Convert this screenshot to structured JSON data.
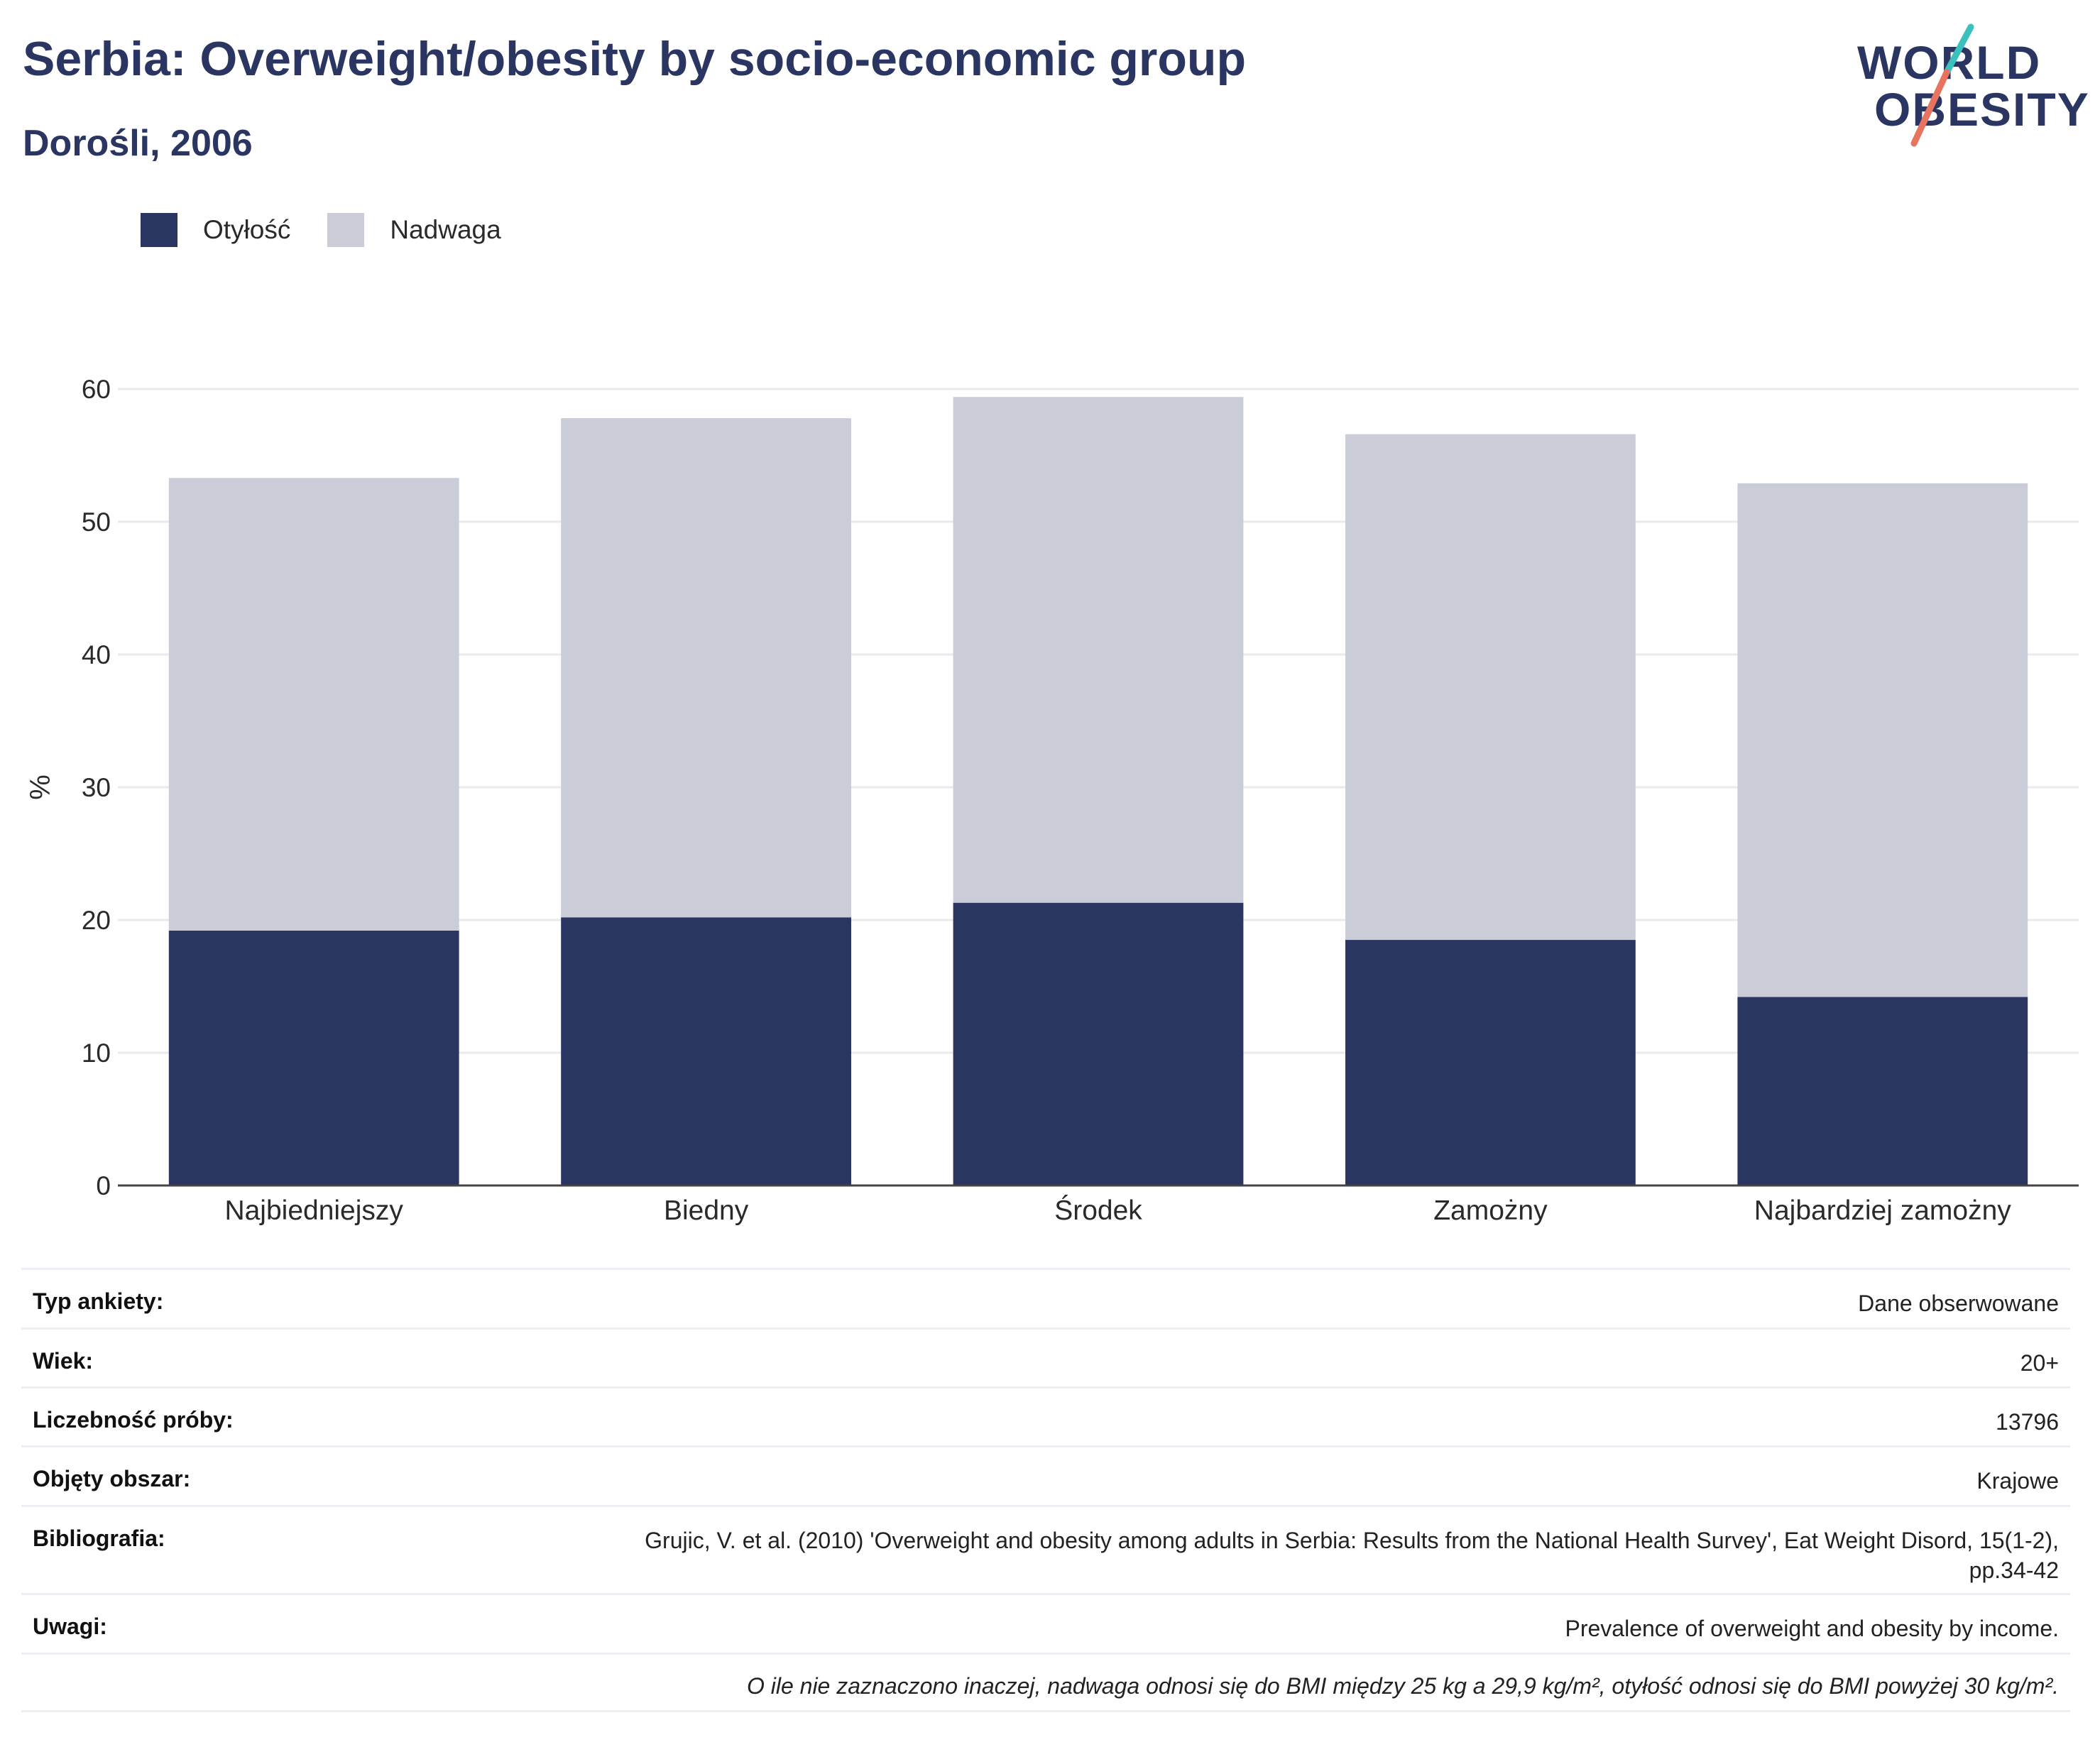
{
  "header": {
    "title": "Serbia: Overweight/obesity by socio-economic group",
    "subtitle": "Dorośli, 2006"
  },
  "logo": {
    "line1": "WORLD",
    "line2": "OBESITY"
  },
  "colors": {
    "obesity": "#2a3561",
    "overweight": "#caccd8",
    "title": "#2a3561",
    "logo_teal": "#3bbfbf",
    "logo_coral": "#e8735f"
  },
  "chart_data": {
    "type": "bar",
    "stacked": true,
    "categories": [
      "Najbiedniejszy",
      "Biedny",
      "Środek",
      "Zamożny",
      "Najbardziej zamożny"
    ],
    "series": [
      {
        "name": "Otyłość",
        "values": [
          19.2,
          20.2,
          21.3,
          18.5,
          14.2
        ]
      },
      {
        "name": "Nadwaga",
        "values": [
          34.1,
          37.6,
          38.1,
          38.1,
          38.7
        ]
      }
    ],
    "ylabel": "%",
    "ylim": [
      0,
      60
    ],
    "yticks": [
      0,
      10,
      20,
      30,
      40,
      50,
      60
    ],
    "grid": true,
    "legend_position": "top-left"
  },
  "meta": {
    "rows": [
      {
        "key": "Typ ankiety:",
        "value": "Dane obserwowane"
      },
      {
        "key": "Wiek:",
        "value": "20+"
      },
      {
        "key": "Liczebność próby:",
        "value": "13796"
      },
      {
        "key": "Objęty obszar:",
        "value": "Krajowe"
      },
      {
        "key": "Bibliografia:",
        "value": "Grujic, V. et al. (2010) 'Overweight and obesity among adults in Serbia: Results from the National Health Survey', Eat Weight Disord, 15(1-2), pp.34-42"
      },
      {
        "key": "Uwagi:",
        "value": "Prevalence of overweight and obesity by income."
      }
    ],
    "note": "O ile nie zaznaczono inaczej, nadwaga odnosi się do BMI między 25 kg a 29,9 kg/m², otyłość odnosi się do BMI powyżej 30 kg/m²."
  }
}
